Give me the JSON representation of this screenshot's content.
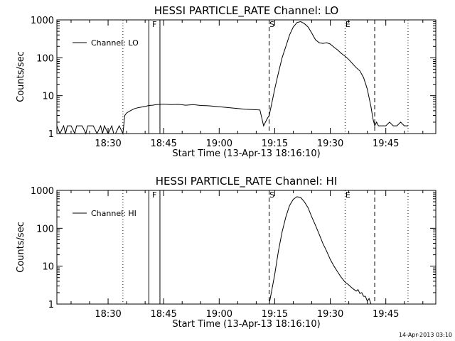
{
  "timestamp": "14-Apr-2013 03:10",
  "chart_data": [
    {
      "type": "line",
      "title": "HESSI PARTICLE_RATE Channel: LO",
      "xlabel": "Start Time (13-Apr-13 18:16:10)",
      "ylabel": "Counts/sec",
      "yscale": "log",
      "ylim": [
        1,
        1000
      ],
      "xlim": [
        "18:16:10",
        "19:58:30"
      ],
      "x_ticks": [
        "18:30",
        "18:45",
        "19:00",
        "19:15",
        "19:30",
        "19:45"
      ],
      "y_ticks": [
        "1",
        "10",
        "100",
        "1000"
      ],
      "grid": false,
      "legend": {
        "placement": "top-left",
        "entries": [
          "Channel: LO"
        ]
      },
      "markers": [
        {
          "label": "F",
          "style": "solid",
          "times": [
            "18:41:00",
            "18:44:00"
          ]
        },
        {
          "label": "S",
          "style": "dashed",
          "times": [
            "19:13:30"
          ]
        },
        {
          "label": "E",
          "style": "dotted",
          "times": [
            "19:34:00"
          ]
        },
        {
          "label": "",
          "style": "dashed",
          "times": [
            "19:42:00"
          ]
        },
        {
          "label": "",
          "style": "dotted",
          "times": [
            "18:34:00",
            "19:51:00"
          ]
        }
      ],
      "series": [
        {
          "name": "Channel: LO",
          "x": [
            "18:16:10",
            "18:17:00",
            "18:18:00",
            "18:18:30",
            "18:19:00",
            "18:20:00",
            "18:21:00",
            "18:21:30",
            "18:22:00",
            "18:23:00",
            "18:24:00",
            "18:24:30",
            "18:25:00",
            "18:26:00",
            "18:27:00",
            "18:28:00",
            "18:28:30",
            "18:29:00",
            "18:30:00",
            "18:31:00",
            "18:31:30",
            "18:32:00",
            "18:33:00",
            "18:34:00",
            "18:34:30",
            "18:35:00",
            "18:36:00",
            "18:37:00",
            "18:38:00",
            "18:39:00",
            "18:40:00",
            "18:41:00",
            "18:42:00",
            "18:43:00",
            "18:44:00",
            "18:45:00",
            "18:47:00",
            "18:49:00",
            "18:51:00",
            "18:53:00",
            "18:55:00",
            "18:57:00",
            "18:59:00",
            "19:01:00",
            "19:03:00",
            "19:05:00",
            "19:07:00",
            "19:09:00",
            "19:11:00",
            "19:12:00",
            "19:12:30",
            "19:13:00",
            "19:13:30",
            "19:14:00",
            "19:15:00",
            "19:16:00",
            "19:17:00",
            "19:18:00",
            "19:19:00",
            "19:20:00",
            "19:21:00",
            "19:22:00",
            "19:23:00",
            "19:24:00",
            "19:25:00",
            "19:26:00",
            "19:27:00",
            "19:28:00",
            "19:29:00",
            "19:30:00",
            "19:31:00",
            "19:32:00",
            "19:33:00",
            "19:34:00",
            "19:35:00",
            "19:36:00",
            "19:37:00",
            "19:38:00",
            "19:39:00",
            "19:40:00",
            "19:41:00",
            "19:41:30",
            "19:42:00",
            "19:42:30",
            "19:43:00",
            "19:44:00",
            "19:45:00",
            "19:46:00",
            "19:47:00",
            "19:48:00",
            "19:49:00",
            "19:50:00",
            "19:51:00"
          ],
          "y": [
            1.6,
            1,
            1.6,
            1,
            1.6,
            1.6,
            1,
            1.6,
            1.6,
            1.6,
            1,
            1.6,
            1.6,
            1.6,
            1,
            1.6,
            1,
            1.6,
            1,
            1.6,
            1,
            1,
            1.6,
            1,
            3,
            3.5,
            4,
            4.5,
            4.8,
            5,
            5.2,
            5.5,
            5.6,
            5.8,
            5.9,
            6,
            5.8,
            5.9,
            5.6,
            5.8,
            5.5,
            5.4,
            5.2,
            5,
            4.8,
            4.6,
            4.4,
            4.3,
            4.2,
            1.6,
            2,
            2.5,
            3,
            5,
            15,
            40,
            100,
            200,
            400,
            650,
            850,
            900,
            800,
            650,
            450,
            300,
            250,
            240,
            250,
            230,
            190,
            160,
            130,
            110,
            90,
            70,
            55,
            45,
            30,
            15,
            5,
            2.5,
            1.6,
            2,
            1.6,
            1.6,
            1.6,
            2,
            1.6,
            1.6,
            2,
            1.6,
            1.6
          ]
        }
      ]
    },
    {
      "type": "line",
      "title": "HESSI PARTICLE_RATE Channel: HI",
      "xlabel": "Start Time (13-Apr-13 18:16:10)",
      "ylabel": "Counts/sec",
      "yscale": "log",
      "ylim": [
        1,
        1000
      ],
      "xlim": [
        "18:16:10",
        "19:58:30"
      ],
      "x_ticks": [
        "18:30",
        "18:45",
        "19:00",
        "19:15",
        "19:30",
        "19:45"
      ],
      "y_ticks": [
        "1",
        "10",
        "100",
        "1000"
      ],
      "grid": false,
      "legend": {
        "placement": "top-left",
        "entries": [
          "Channel: HI"
        ]
      },
      "markers": [
        {
          "label": "F",
          "style": "solid",
          "times": [
            "18:41:00",
            "18:44:00"
          ]
        },
        {
          "label": "S",
          "style": "dashed",
          "times": [
            "19:13:30"
          ]
        },
        {
          "label": "E",
          "style": "dotted",
          "times": [
            "19:34:00"
          ]
        },
        {
          "label": "",
          "style": "dashed",
          "times": [
            "19:42:00"
          ]
        },
        {
          "label": "",
          "style": "dotted",
          "times": [
            "18:34:00",
            "19:51:00"
          ]
        }
      ],
      "series": [
        {
          "name": "Channel: HI",
          "x": [
            "19:13:30",
            "19:14:00",
            "19:15:00",
            "19:16:00",
            "19:17:00",
            "19:18:00",
            "19:19:00",
            "19:20:00",
            "19:21:00",
            "19:22:00",
            "19:23:00",
            "19:24:00",
            "19:25:00",
            "19:26:00",
            "19:27:00",
            "19:28:00",
            "19:29:00",
            "19:30:00",
            "19:31:00",
            "19:32:00",
            "19:33:00",
            "19:34:00",
            "19:35:00",
            "19:36:00",
            "19:37:00",
            "19:37:30",
            "19:38:00",
            "19:38:30",
            "19:39:00",
            "19:39:30",
            "19:40:00",
            "19:40:30",
            "19:41:00"
          ],
          "y": [
            1,
            1.8,
            6,
            25,
            80,
            200,
            400,
            580,
            680,
            650,
            500,
            350,
            200,
            120,
            70,
            40,
            25,
            15,
            10,
            7,
            5,
            3.8,
            3.2,
            2.6,
            2.2,
            2.4,
            1.9,
            2,
            1.6,
            1.6,
            1.2,
            1.4,
            1
          ]
        }
      ]
    }
  ]
}
